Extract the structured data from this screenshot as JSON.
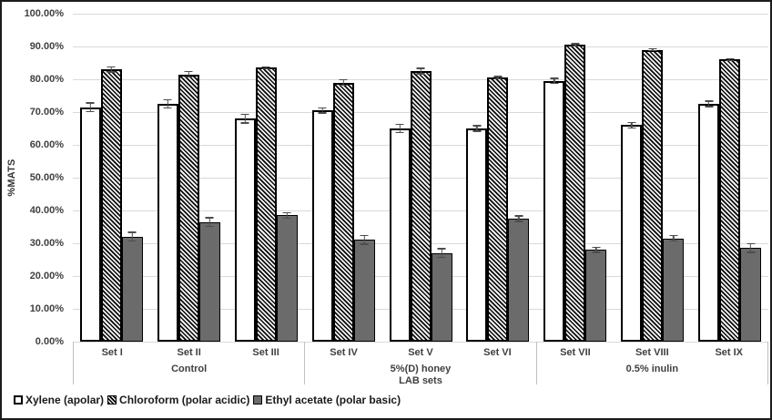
{
  "chart_data": {
    "type": "bar",
    "title": "",
    "ylabel": "%MATS",
    "xlabel": "LAB sets",
    "ylim": [
      0,
      100
    ],
    "grid": true,
    "legend_position": "bottom-left",
    "yticks": [
      {
        "value": 0,
        "label": "0.00%"
      },
      {
        "value": 10,
        "label": "10.00%"
      },
      {
        "value": 20,
        "label": "20.00%"
      },
      {
        "value": 30,
        "label": "30.00%"
      },
      {
        "value": 40,
        "label": "40.00%"
      },
      {
        "value": 50,
        "label": "50.00%"
      },
      {
        "value": 60,
        "label": "60.00%"
      },
      {
        "value": 70,
        "label": "70.00%"
      },
      {
        "value": 80,
        "label": "80.00%"
      },
      {
        "value": 90,
        "label": "90.00%"
      },
      {
        "value": 100,
        "label": "100.00%"
      }
    ],
    "groups": [
      {
        "label": "Control",
        "sets": [
          "Set I",
          "Set II",
          "Set III"
        ]
      },
      {
        "label": "5%(D) honey",
        "sets": [
          "Set IV",
          "Set V",
          "Set VI"
        ]
      },
      {
        "label": "0.5% inulin",
        "sets": [
          "Set VII",
          "Set VIII",
          "Set IX"
        ]
      }
    ],
    "categories": [
      "Set I",
      "Set II",
      "Set III",
      "Set IV",
      "Set V",
      "Set VI",
      "Set VII",
      "Set VIII",
      "Set IX"
    ],
    "series": [
      {
        "name": "Xylene (apolar)",
        "pattern": "white",
        "values": [
          71.5,
          72.5,
          68,
          70.5,
          65,
          65,
          79.5,
          66,
          72.5
        ],
        "errors": [
          1.5,
          1.5,
          1.5,
          1,
          1.5,
          1,
          1,
          1,
          1
        ]
      },
      {
        "name": "Chloroform (polar acidic)",
        "pattern": "hatch",
        "values": [
          83,
          81.5,
          83.5,
          79,
          82.5,
          80.5,
          90.5,
          89,
          86
        ],
        "errors": [
          1,
          1,
          0.5,
          1,
          1,
          0.5,
          0.5,
          0.5,
          0.5
        ]
      },
      {
        "name": "Ethyl acetate (polar basic)",
        "pattern": "gray",
        "values": [
          32,
          36.5,
          38.5,
          31,
          27,
          37.5,
          28,
          31.5,
          28.5
        ],
        "errors": [
          1.5,
          1.5,
          1,
          1.5,
          1.5,
          1,
          1,
          1,
          1.5
        ]
      }
    ],
    "colors": {
      "gridline": "#d9d9d9",
      "axis_text": "#404040",
      "bar_border": "#000000",
      "bar_gray_fill": "#6b6b6b",
      "error_bar": "#4d4d4d",
      "group_divider": "#bfbfbf"
    }
  }
}
